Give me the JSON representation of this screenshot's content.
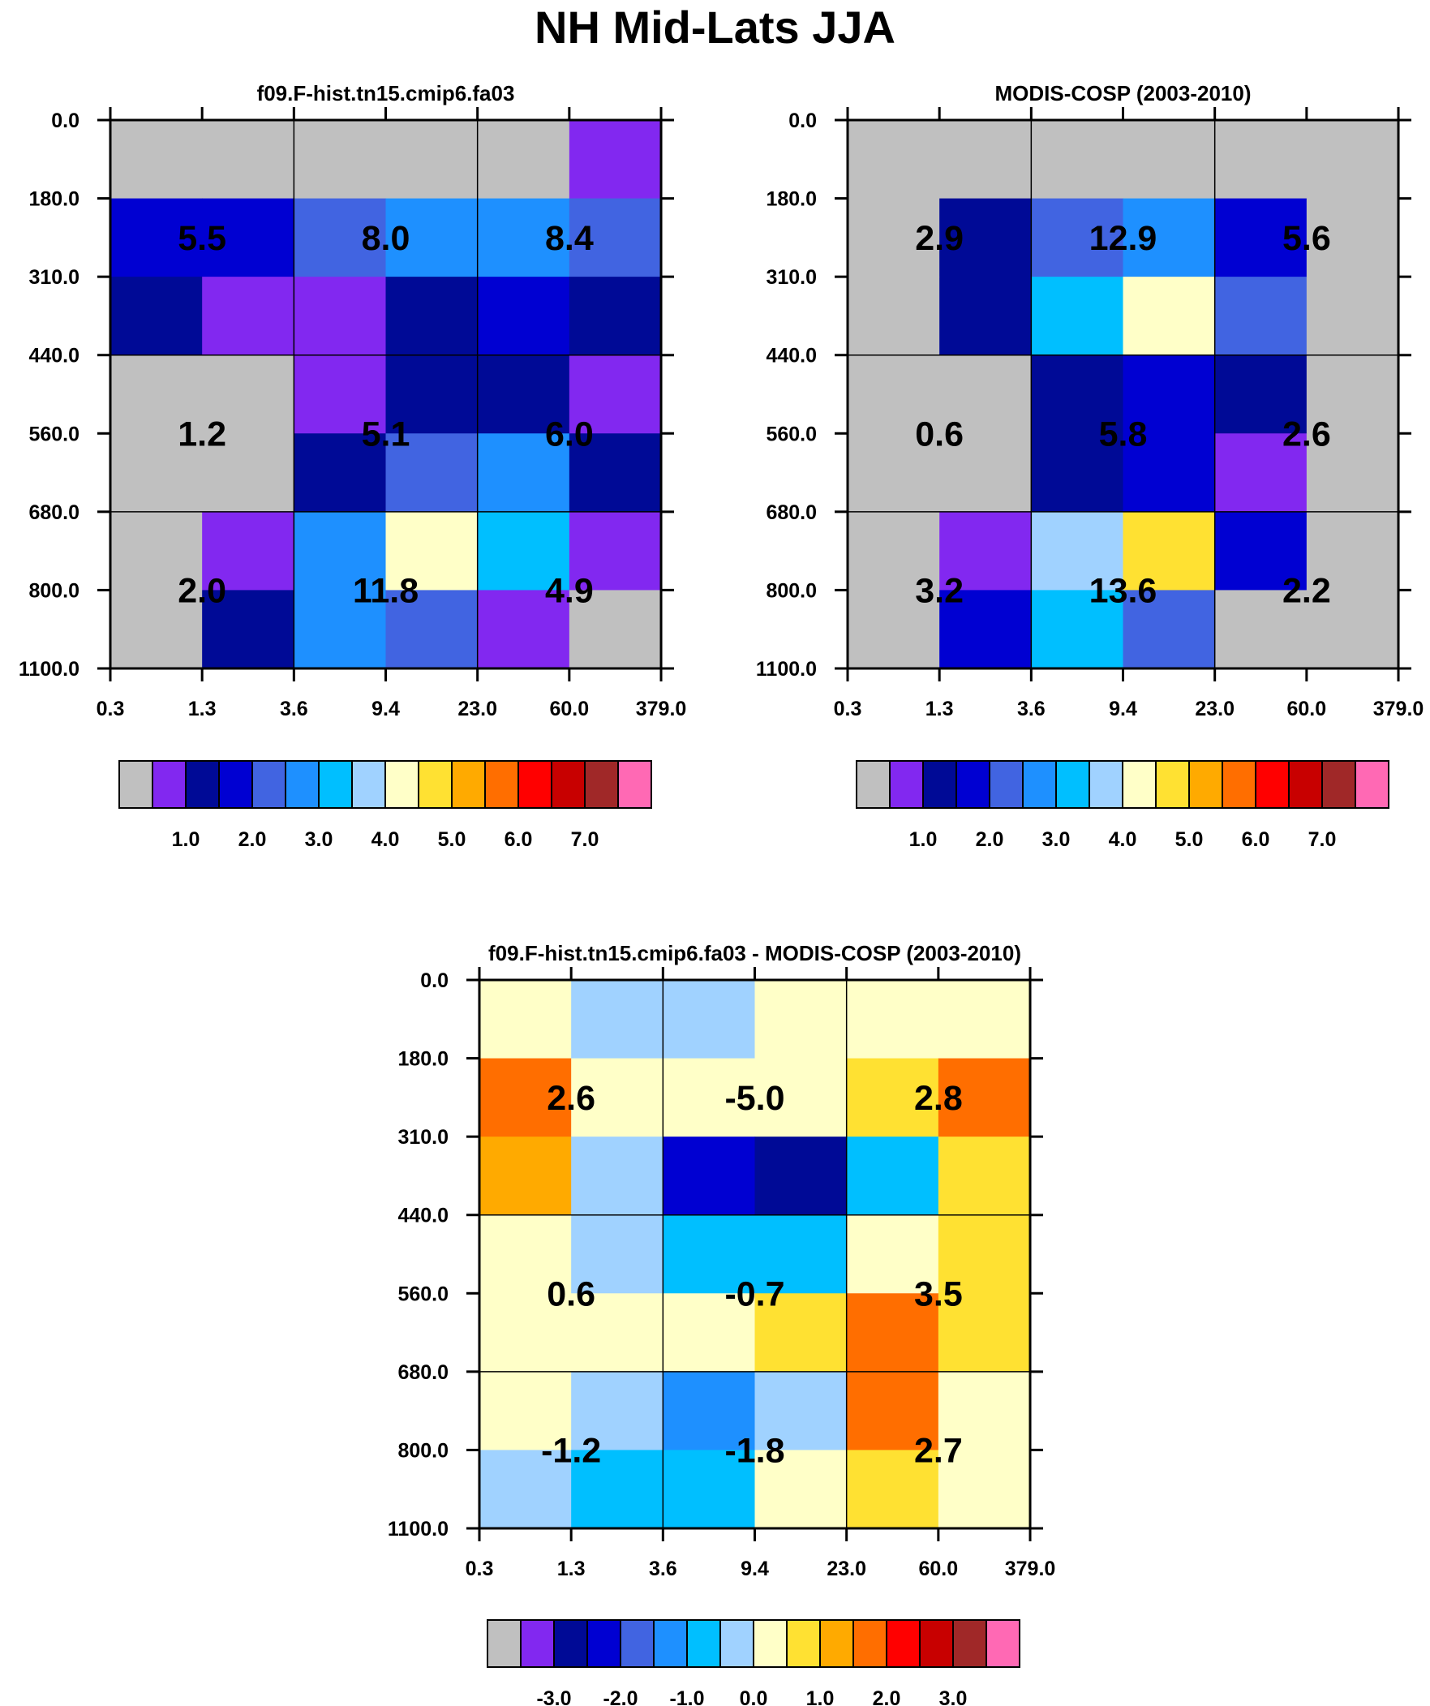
{
  "figure_title": "NH Mid-Lats JJA",
  "palette": [
    "#c0c0c0",
    "#8228f0",
    "#000a96",
    "#0000d2",
    "#4164e1",
    "#1e90ff",
    "#00bfff",
    "#a0d2ff",
    "#ffffc8",
    "#ffe132",
    "#ffaa00",
    "#ff6e00",
    "#ff0000",
    "#c80000",
    "#a02828",
    "#ff69b4"
  ],
  "chart_data": [
    {
      "type": "heatmap",
      "title": "f09.F-hist.tn15.cmip6.fa03",
      "x_tick_labels": [
        "0.3",
        "1.3",
        "3.6",
        "9.4",
        "23.0",
        "60.0",
        "379.0"
      ],
      "y_tick_labels": [
        "0.0",
        "180.0",
        "310.0",
        "440.0",
        "560.0",
        "680.0",
        "800.0",
        "1100.0"
      ],
      "cell_colors": [
        [
          0,
          0,
          0,
          0,
          0,
          1
        ],
        [
          3,
          3,
          4,
          5,
          5,
          4
        ],
        [
          2,
          1,
          1,
          2,
          3,
          2
        ],
        [
          0,
          0,
          1,
          2,
          2,
          1
        ],
        [
          0,
          0,
          2,
          4,
          5,
          2
        ],
        [
          0,
          1,
          5,
          8,
          6,
          1
        ],
        [
          0,
          2,
          5,
          4,
          1,
          0
        ]
      ],
      "group_labels": [
        [
          "5.5",
          "8.0",
          "8.4"
        ],
        [
          "1.2",
          "5.1",
          "6.0"
        ],
        [
          "2.0",
          "11.8",
          "4.9"
        ]
      ],
      "colorbar": {
        "tick_labels": [
          "1.0",
          "2.0",
          "3.0",
          "4.0",
          "5.0",
          "6.0",
          "7.0"
        ],
        "tick_values": [
          1.0,
          2.0,
          3.0,
          4.0,
          5.0,
          6.0,
          7.0
        ],
        "levels": [
          0.5,
          1.0,
          1.5,
          2.0,
          2.5,
          3.0,
          3.5,
          4.0,
          4.5,
          5.0,
          5.5,
          6.0,
          6.5,
          7.0,
          7.5
        ]
      }
    },
    {
      "type": "heatmap",
      "title": "MODIS-COSP (2003-2010)",
      "x_tick_labels": [
        "0.3",
        "1.3",
        "3.6",
        "9.4",
        "23.0",
        "60.0",
        "379.0"
      ],
      "y_tick_labels": [
        "0.0",
        "180.0",
        "310.0",
        "440.0",
        "560.0",
        "680.0",
        "800.0",
        "1100.0"
      ],
      "cell_colors": [
        [
          0,
          0,
          0,
          0,
          0,
          0
        ],
        [
          0,
          2,
          4,
          5,
          3,
          0
        ],
        [
          0,
          2,
          6,
          8,
          4,
          0
        ],
        [
          0,
          0,
          2,
          3,
          2,
          0
        ],
        [
          0,
          0,
          2,
          3,
          1,
          0
        ],
        [
          0,
          1,
          7,
          9,
          3,
          0
        ],
        [
          0,
          3,
          6,
          4,
          0,
          0
        ]
      ],
      "group_labels": [
        [
          "2.9",
          "12.9",
          "5.6"
        ],
        [
          "0.6",
          "5.8",
          "2.6"
        ],
        [
          "3.2",
          "13.6",
          "2.2"
        ]
      ],
      "colorbar": {
        "tick_labels": [
          "1.0",
          "2.0",
          "3.0",
          "4.0",
          "5.0",
          "6.0",
          "7.0"
        ],
        "tick_values": [
          1.0,
          2.0,
          3.0,
          4.0,
          5.0,
          6.0,
          7.0
        ],
        "levels": [
          0.5,
          1.0,
          1.5,
          2.0,
          2.5,
          3.0,
          3.5,
          4.0,
          4.5,
          5.0,
          5.5,
          6.0,
          6.5,
          7.0,
          7.5
        ]
      }
    },
    {
      "type": "heatmap",
      "title": "f09.F-hist.tn15.cmip6.fa03 - MODIS-COSP (2003-2010)",
      "x_tick_labels": [
        "0.3",
        "1.3",
        "3.6",
        "9.4",
        "23.0",
        "60.0",
        "379.0"
      ],
      "y_tick_labels": [
        "0.0",
        "180.0",
        "310.0",
        "440.0",
        "560.0",
        "680.0",
        "800.0",
        "1100.0"
      ],
      "cell_colors": [
        [
          8,
          7,
          7,
          8,
          8,
          8
        ],
        [
          11,
          8,
          8,
          8,
          9,
          11
        ],
        [
          10,
          7,
          3,
          2,
          6,
          9
        ],
        [
          8,
          7,
          6,
          6,
          8,
          9
        ],
        [
          8,
          8,
          8,
          9,
          11,
          9
        ],
        [
          8,
          7,
          5,
          7,
          11,
          8
        ],
        [
          7,
          6,
          6,
          8,
          9,
          8
        ]
      ],
      "group_labels": [
        [
          "2.6",
          "-5.0",
          "2.8"
        ],
        [
          "0.6",
          "-0.7",
          "3.5"
        ],
        [
          "-1.2",
          "-1.8",
          "2.7"
        ]
      ],
      "colorbar": {
        "tick_labels": [
          "-3.0",
          "-2.0",
          "-1.0",
          "0.0",
          "1.0",
          "2.0",
          "3.0"
        ],
        "tick_values": [
          -3.0,
          -2.0,
          -1.0,
          0.0,
          1.0,
          2.0,
          3.0
        ],
        "levels": [
          -3.5,
          -3.0,
          -2.5,
          -2.0,
          -1.5,
          -1.0,
          -0.5,
          0.0,
          0.5,
          1.0,
          1.5,
          2.0,
          2.5,
          3.0,
          3.5
        ]
      }
    }
  ]
}
